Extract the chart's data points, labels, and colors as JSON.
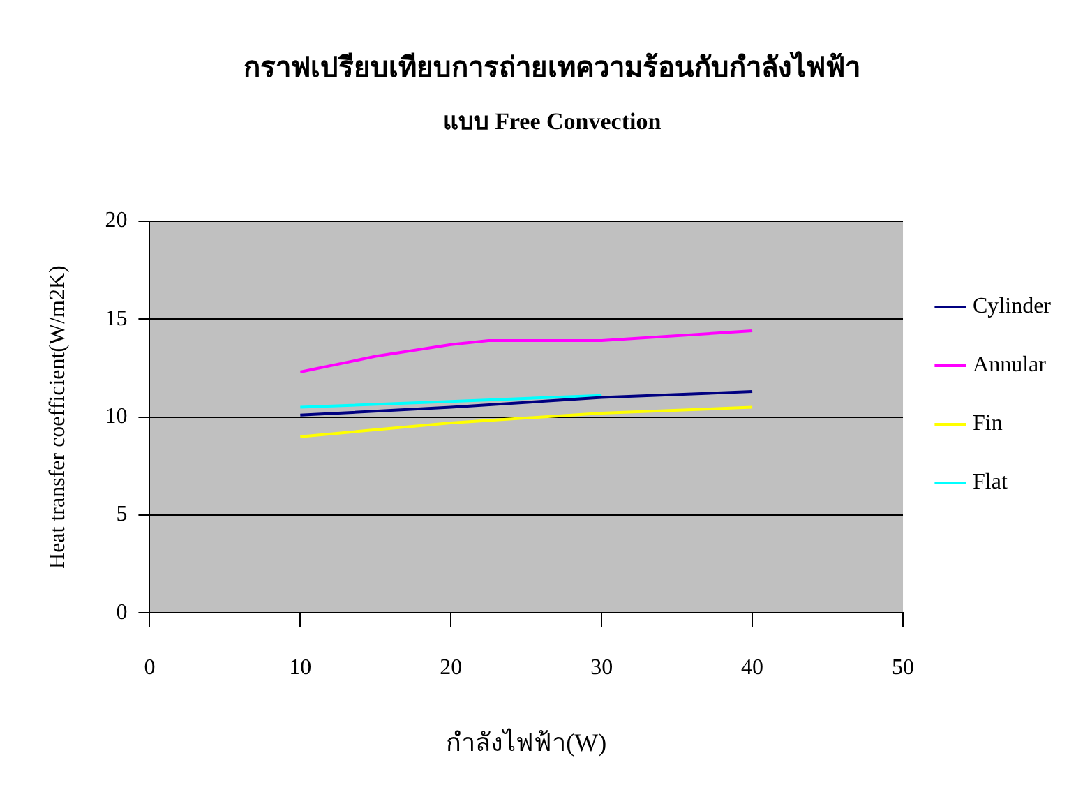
{
  "chart_data": {
    "type": "line",
    "title": "กราฟเปรียบเทียบการถ่ายเทความร้อนกับกำลังไฟฟ้า",
    "subtitle": "แบบ Free Convection",
    "xlabel": "กำลังไฟฟ้า(W)",
    "ylabel": "Heat transfer coefficient(W/m2K)",
    "xlim": [
      0,
      50
    ],
    "xticks": [
      0,
      10,
      20,
      30,
      40,
      50
    ],
    "ylim": [
      0,
      20
    ],
    "yticks": [
      0,
      5,
      10,
      15,
      20
    ],
    "grid": "y",
    "legend": "right",
    "marker": "none",
    "line_style": "solid",
    "series": [
      {
        "name": "Cylinder",
        "color": "#000080",
        "x": [
          10,
          20,
          30,
          40
        ],
        "values": [
          10.1,
          10.5,
          11.0,
          11.3
        ]
      },
      {
        "name": "Annular",
        "color": "#ff00ff",
        "x": [
          10,
          15,
          20,
          22.5,
          30,
          40
        ],
        "values": [
          12.3,
          13.1,
          13.7,
          13.9,
          13.9,
          14.4
        ]
      },
      {
        "name": "Fin",
        "color": "#ffff00",
        "x": [
          10,
          20,
          30,
          40
        ],
        "values": [
          9.0,
          9.7,
          10.2,
          10.5
        ]
      },
      {
        "name": "Flat",
        "color": "#00ffff",
        "x": [
          10,
          20,
          30
        ],
        "values": [
          10.5,
          10.8,
          11.1
        ]
      }
    ]
  }
}
